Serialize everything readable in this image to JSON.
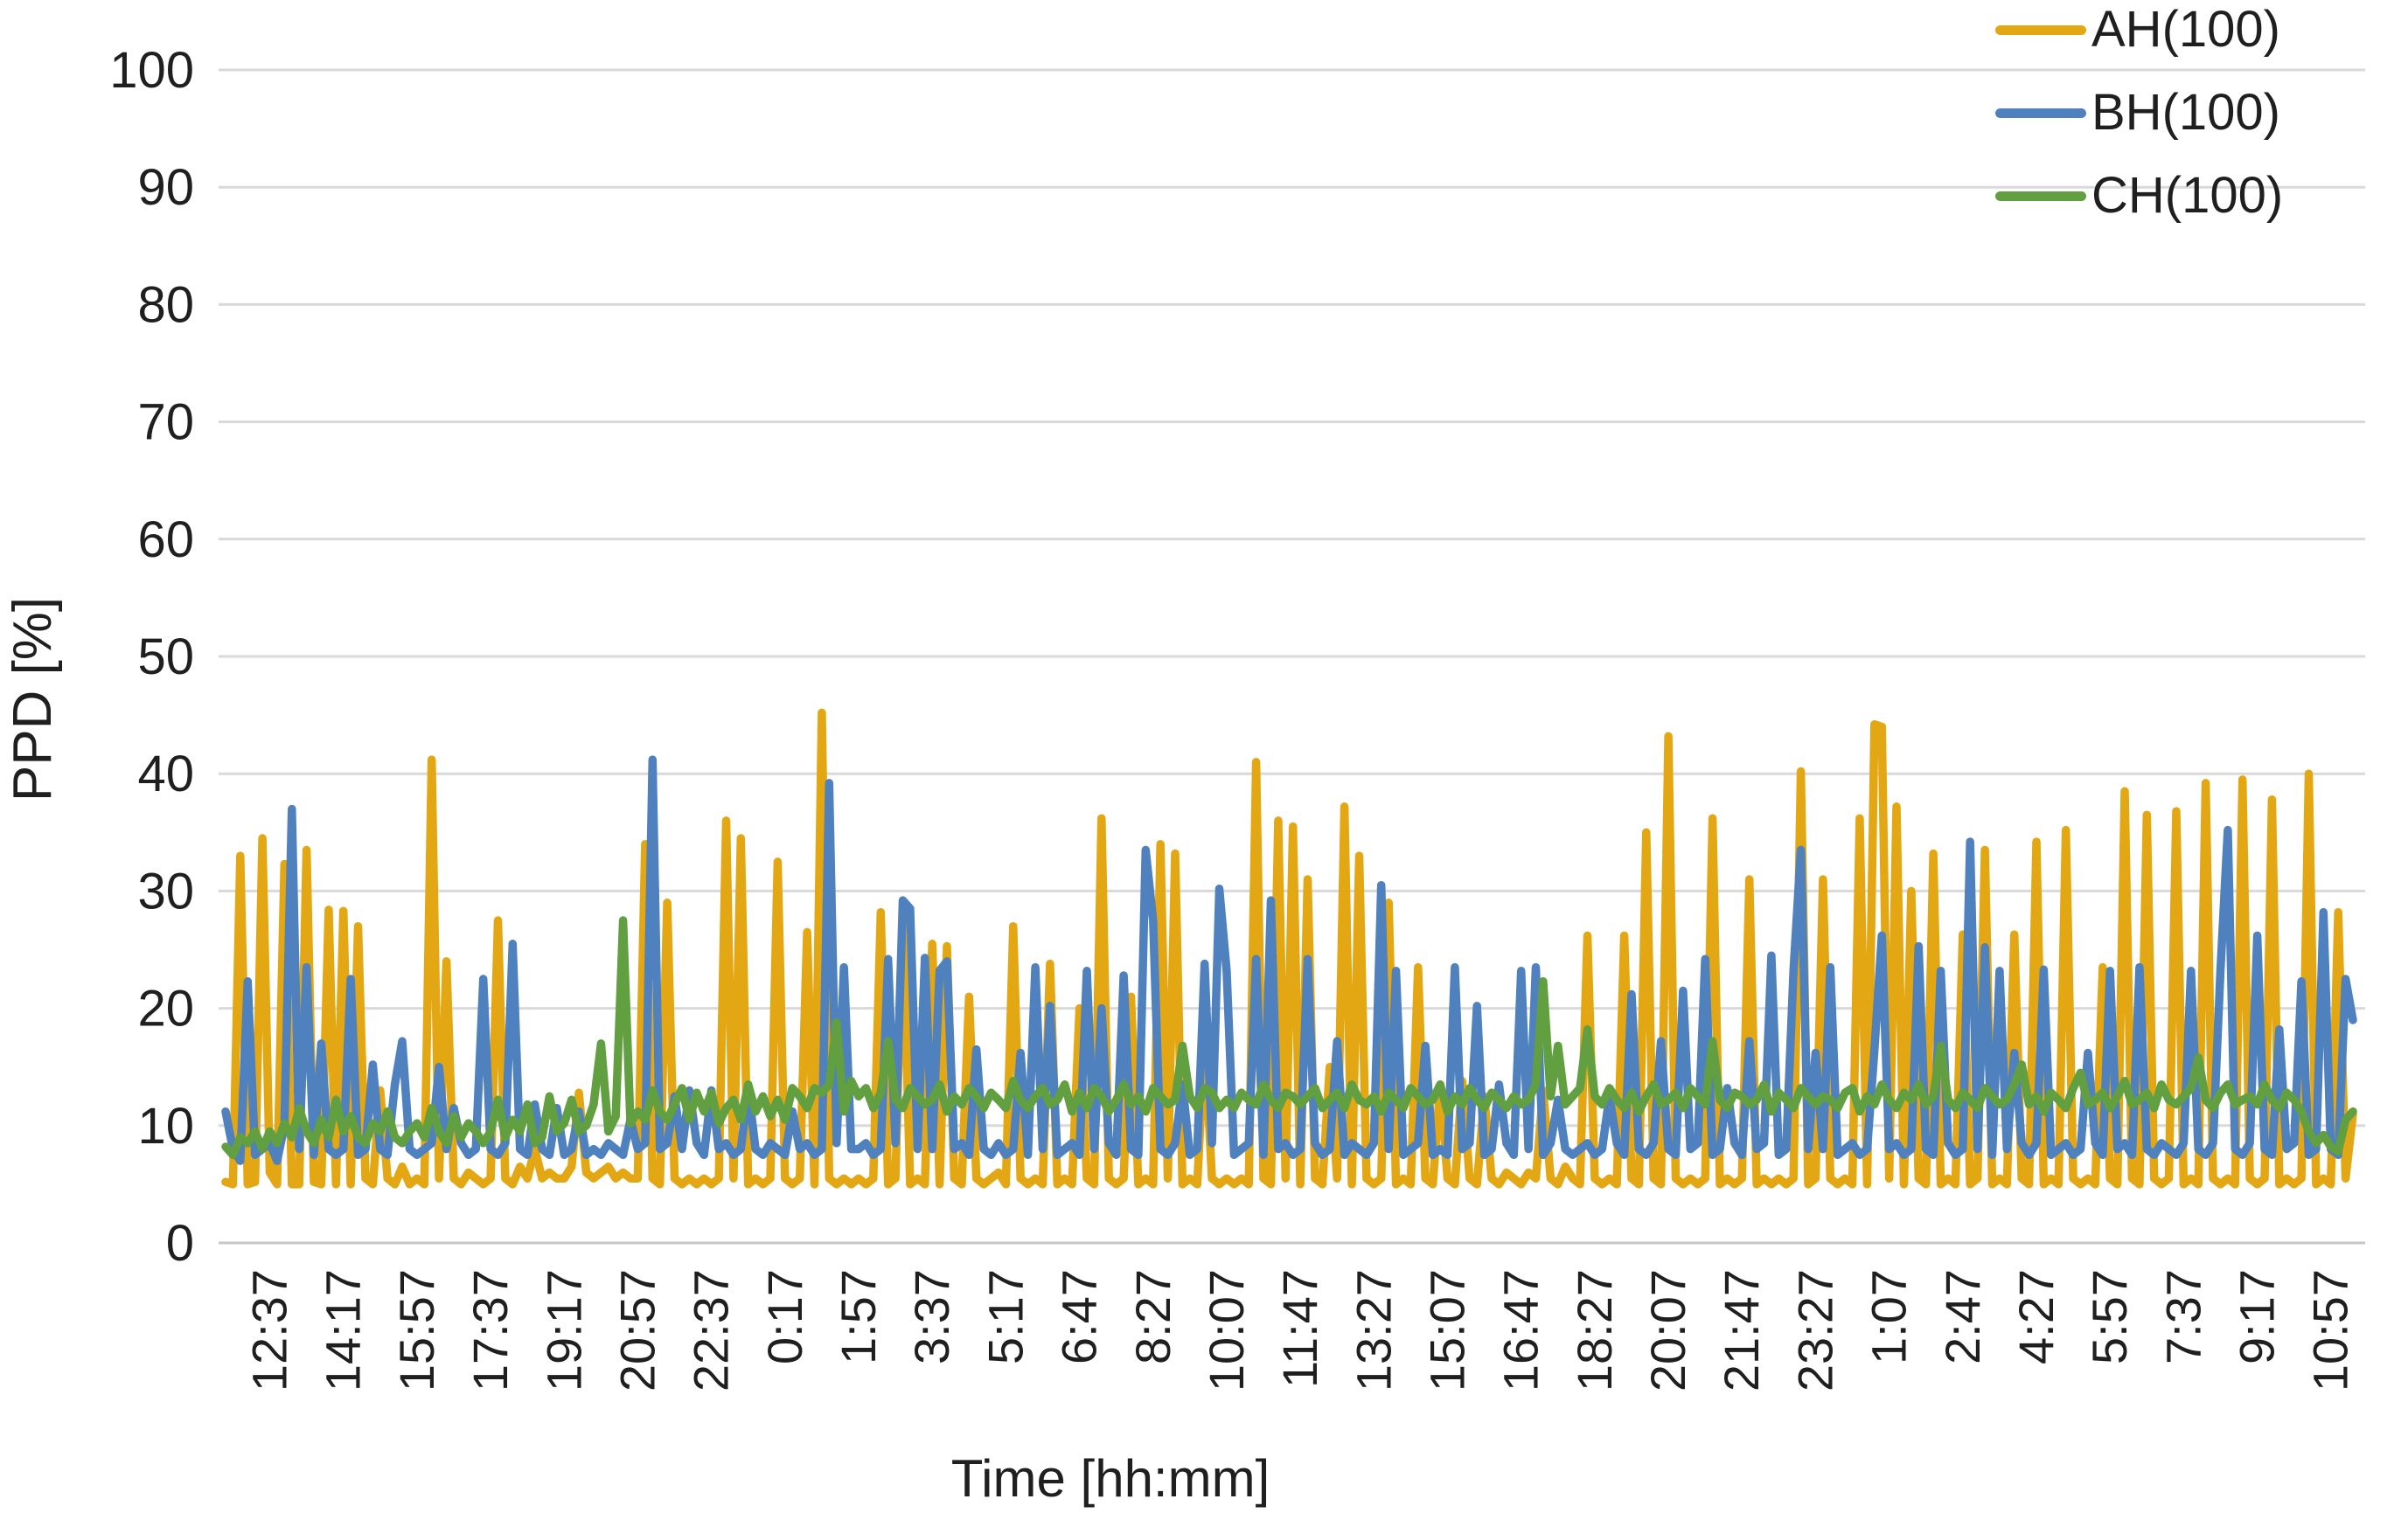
{
  "chart_data": {
    "type": "line",
    "title": "",
    "xlabel": "Time [hh:mm]",
    "ylabel": "PPD [%]",
    "ylim": [
      0,
      100
    ],
    "yticks": [
      0,
      10,
      20,
      30,
      40,
      50,
      60,
      70,
      80,
      90,
      100
    ],
    "grid": true,
    "legend_position": "top-right",
    "grid_color": "#d9d9d9",
    "axis_line_color": "#c6c6c6",
    "text_color": "#1f1f1f",
    "x_tick_labels": [
      "12:37",
      "14:17",
      "15:57",
      "17:37",
      "19:17",
      "20:57",
      "22:37",
      "0:17",
      "1:57",
      "3:37",
      "5:17",
      "6:47",
      "8:27",
      "10:07",
      "11:47",
      "13:27",
      "15:07",
      "16:47",
      "18:27",
      "20:07",
      "21:47",
      "23:27",
      "1:07",
      "2:47",
      "4:27",
      "5:57",
      "7:37",
      "9:17",
      "10:57"
    ],
    "first_tick_index": 6,
    "points_per_tick": 10,
    "series": [
      {
        "name": "AH(100)",
        "color": "#e2a712",
        "values": [
          5.2,
          5,
          33,
          5,
          5.2,
          34.5,
          6,
          5,
          32.3,
          5,
          5,
          33.5,
          5.2,
          5,
          28.4,
          5,
          28.3,
          5,
          27,
          5.5,
          5,
          13,
          5.5,
          5,
          6.5,
          5,
          5.5,
          5,
          41.2,
          5.5,
          24,
          5.5,
          5,
          6,
          5.5,
          5,
          5.5,
          27.5,
          5.5,
          5,
          6.5,
          5.5,
          8,
          5.5,
          6,
          5.5,
          5.5,
          6.5,
          12.8,
          6,
          5.5,
          6,
          6.5,
          5.5,
          6,
          5.5,
          5.5,
          34,
          5.5,
          5,
          29,
          5.5,
          5,
          5.5,
          5,
          5.5,
          5,
          5.5,
          36,
          5.5,
          34.5,
          5,
          5.5,
          5,
          5.5,
          32.5,
          5.5,
          5,
          5.5,
          26.5,
          5,
          45.2,
          5.5,
          5,
          5.5,
          5,
          5.5,
          5,
          5.5,
          28.2,
          5,
          5.5,
          28.4,
          5,
          5.5,
          5,
          25.5,
          5,
          25.3,
          5.5,
          5,
          21,
          5.5,
          5,
          5.5,
          6,
          5,
          27,
          5.5,
          5,
          5.5,
          5,
          23.8,
          5,
          5.5,
          5,
          20,
          5.5,
          5,
          36.2,
          5.5,
          5,
          5.5,
          21,
          5,
          5.5,
          5,
          34,
          5.5,
          33.2,
          5,
          5.5,
          5,
          17.5,
          5.5,
          5,
          5.5,
          5,
          5.5,
          5,
          41,
          5.5,
          5,
          36,
          5.5,
          35.5,
          5,
          31,
          5.5,
          5,
          15,
          5.5,
          37.2,
          5,
          33,
          5.5,
          5,
          5.5,
          29,
          5,
          5.5,
          5,
          23.5,
          5.5,
          5,
          13.5,
          5.5,
          5,
          13.8,
          5.5,
          5,
          12.5,
          5.5,
          5,
          6,
          5.5,
          5,
          6,
          5.5,
          13,
          5.5,
          5,
          6.5,
          5.5,
          5,
          26.2,
          5.5,
          5,
          5.5,
          5,
          26.2,
          5.5,
          5,
          35,
          5.5,
          5,
          43.2,
          5.5,
          5,
          5.5,
          5,
          5.5,
          36.2,
          5,
          5.5,
          5,
          5.5,
          31,
          5,
          5.5,
          5,
          5.5,
          5,
          5.5,
          40.2,
          5,
          5.5,
          31,
          5.5,
          5,
          5.5,
          5,
          36.2,
          5,
          44.2,
          44,
          5.5,
          37.2,
          5,
          30,
          5.5,
          5,
          33.2,
          5,
          5.5,
          5,
          26.3,
          5,
          5.5,
          33.5,
          5,
          5.5,
          5,
          26.3,
          5.5,
          5,
          34.2,
          5,
          5.5,
          5,
          35.2,
          5.5,
          5,
          5.5,
          5,
          23.5,
          5.5,
          5,
          38.5,
          5.5,
          5,
          36.5,
          5.5,
          5,
          5.5,
          36.8,
          5,
          5.5,
          5,
          39.2,
          5.5,
          5,
          5.5,
          5,
          39.5,
          5.5,
          5,
          5.5,
          37.8,
          5,
          5.5,
          5,
          5.5,
          40,
          5,
          5.5,
          5,
          28.2,
          5.5,
          11
        ]
      },
      {
        "name": "BH(100)",
        "color": "#4e81bd",
        "values": [
          11.2,
          8,
          7,
          22.3,
          7.5,
          8,
          8.5,
          7,
          10,
          37,
          8,
          23.5,
          7.5,
          17,
          8,
          7.5,
          8,
          22.5,
          7.5,
          8,
          15.2,
          8,
          7.5,
          13.5,
          17.2,
          8,
          7.5,
          8,
          8.5,
          15,
          8,
          11.5,
          8.5,
          7.5,
          8,
          22.5,
          8,
          7.5,
          8.5,
          25.5,
          8,
          7.5,
          11.8,
          8,
          7.5,
          11.5,
          7.5,
          8,
          11.2,
          7.5,
          8,
          7.5,
          8.5,
          8,
          7.5,
          10.5,
          8,
          8.5,
          41.2,
          8,
          8.5,
          12.5,
          8,
          13,
          8.5,
          7.5,
          13,
          8,
          8.5,
          7.5,
          8,
          13.2,
          8,
          7.5,
          8.5,
          8,
          7.5,
          11.2,
          8,
          8.5,
          7.5,
          8,
          39.2,
          8.5,
          23.5,
          8,
          8,
          8.5,
          7.5,
          8,
          24.2,
          8.5,
          29.2,
          28.5,
          8,
          24.3,
          8,
          23.2,
          24,
          8,
          8.5,
          7.5,
          16.5,
          8,
          7.5,
          8.5,
          7.5,
          8,
          16.2,
          7.5,
          23.5,
          8,
          20.2,
          7.5,
          8,
          8.5,
          7.5,
          23.2,
          8,
          20,
          8.5,
          7.5,
          22.8,
          8,
          7.5,
          33.5,
          27.5,
          8,
          7.5,
          8.5,
          13.5,
          7.5,
          8,
          23.8,
          8.5,
          30.2,
          23.2,
          7.5,
          8,
          8.5,
          24.2,
          7.5,
          29.2,
          8,
          8.5,
          7.5,
          8,
          24.2,
          8.5,
          7.5,
          8,
          17.2,
          7.5,
          8.5,
          8,
          7.5,
          8.5,
          30.5,
          8,
          23.2,
          7.5,
          8,
          8.5,
          16.8,
          7.5,
          8,
          7.5,
          23.5,
          8,
          8.5,
          20.2,
          7.5,
          8,
          13.5,
          8.5,
          7.5,
          23.2,
          8,
          23.5,
          7.5,
          8.5,
          12.2,
          8,
          7.5,
          8,
          8.5,
          7.5,
          8,
          12.5,
          8.5,
          7.5,
          21.2,
          8,
          7.5,
          8.5,
          17.2,
          8,
          7.5,
          21.5,
          8,
          8.5,
          24.2,
          7.5,
          8,
          13.2,
          8.5,
          7.5,
          17.2,
          8,
          8.5,
          24.5,
          7.5,
          8,
          23.2,
          33.5,
          8,
          16.2,
          8,
          23.5,
          7.5,
          8,
          8.5,
          7.5,
          8,
          16.5,
          26.2,
          8,
          8.5,
          7.5,
          8,
          25.3,
          8,
          7.5,
          23.2,
          8.5,
          7.5,
          8,
          34.2,
          8,
          25.2,
          7.5,
          23.2,
          8,
          16.2,
          8.5,
          7.5,
          8.5,
          23.3,
          7.5,
          8,
          8.5,
          7.5,
          8,
          16.2,
          8.5,
          7.5,
          23.2,
          8,
          8.5,
          7.5,
          23.5,
          8,
          7.5,
          8.5,
          8,
          7.5,
          8.5,
          23.2,
          8,
          7.5,
          8.5,
          23.2,
          35.2,
          8,
          7.5,
          8.5,
          26.2,
          8,
          7.5,
          18.2,
          8,
          8.5,
          22.3,
          7.5,
          8,
          28.2,
          8,
          7.5,
          22.5,
          19
        ]
      },
      {
        "name": "CH(100)",
        "color": "#619f40",
        "values": [
          8.2,
          7.5,
          9,
          8.5,
          9.5,
          8,
          9.5,
          8.5,
          10.2,
          9,
          11.5,
          9.5,
          8.5,
          10.5,
          9,
          12.2,
          9.5,
          10.8,
          9,
          8.5,
          10.2,
          9.5,
          11.2,
          9,
          8.5,
          9.5,
          10.2,
          9,
          11.5,
          9.5,
          8.5,
          10.8,
          9,
          10.2,
          9.5,
          8.5,
          9.5,
          12.2,
          9,
          10.5,
          9.5,
          11.8,
          8.5,
          9,
          12.5,
          9.5,
          10.2,
          12.2,
          9.5,
          10,
          11.8,
          17,
          9.5,
          10.8,
          27.5,
          10.2,
          11.2,
          10.5,
          13,
          11.2,
          10.5,
          11.8,
          13.2,
          10.5,
          12.8,
          11.2,
          12.8,
          10.2,
          11.5,
          12.2,
          10.5,
          13.5,
          11.2,
          12.5,
          10.8,
          12.2,
          10.5,
          13.2,
          12.5,
          11.5,
          13.2,
          12.8,
          13.5,
          18.8,
          11.2,
          13.8,
          12.5,
          13.2,
          11.5,
          12.8,
          17.2,
          12.2,
          11.5,
          13.2,
          12.5,
          11.8,
          12.2,
          13.5,
          11.2,
          12.5,
          11.8,
          13.2,
          12.5,
          11.5,
          12.8,
          12.2,
          11.5,
          13.8,
          12.2,
          11.5,
          12.5,
          13.2,
          11.8,
          12.2,
          13.5,
          11.2,
          12.8,
          11.5,
          13.2,
          12.5,
          11.2,
          12.2,
          13.5,
          11.8,
          12.5,
          11.2,
          13.2,
          12.5,
          11.8,
          12.2,
          16.8,
          12.5,
          11.5,
          13.2,
          12.8,
          11.5,
          12.2,
          11.5,
          12.8,
          12.2,
          11.8,
          13.5,
          12.2,
          11.5,
          12.8,
          12.5,
          11.8,
          12.5,
          13.2,
          11.5,
          12.2,
          12.8,
          11.5,
          13.5,
          12.2,
          11.8,
          12.5,
          11.2,
          12.8,
          12.2,
          11.5,
          13.2,
          12.5,
          11.8,
          12.2,
          13.5,
          11.2,
          12.5,
          11.8,
          13.2,
          12.2,
          11.5,
          12.8,
          12.2,
          11.5,
          12.5,
          11.8,
          12.2,
          13.5,
          22.3,
          12.5,
          16.8,
          11.8,
          12.5,
          13.2,
          18.2,
          12.5,
          11.8,
          13.2,
          12.2,
          11.5,
          12.8,
          11.2,
          12.5,
          13.5,
          11.8,
          12.2,
          12.8,
          11.5,
          13.2,
          12.5,
          11.8,
          17.2,
          12.2,
          11.5,
          12.8,
          12.5,
          11.8,
          12.2,
          13.5,
          11.2,
          12.8,
          12.2,
          11.5,
          13.2,
          12.5,
          11.8,
          12.5,
          12.2,
          11.5,
          12.8,
          13.2,
          11.2,
          12.5,
          11.8,
          13.5,
          12.2,
          11.5,
          12.8,
          12.2,
          13.5,
          11.8,
          12.5,
          16.8,
          12.2,
          11.5,
          12.8,
          12.2,
          11.5,
          13.2,
          12.5,
          11.8,
          12.2,
          13.5,
          15.2,
          11.8,
          12.5,
          11.2,
          12.8,
          12.2,
          11.5,
          13.2,
          14.5,
          11.8,
          12.2,
          12.8,
          11.5,
          12.5,
          13.8,
          11.8,
          12.2,
          12.8,
          11.5,
          13.5,
          12.2,
          11.8,
          12.5,
          13.2,
          15.8,
          12.2,
          11.5,
          12.8,
          13.5,
          11.8,
          12.2,
          12.5,
          11.8,
          13.5,
          12.2,
          11.5,
          12.8,
          12.2,
          11.2,
          9.5,
          8.5,
          9.2,
          8.2,
          7.8,
          10.5,
          11.2
        ]
      }
    ]
  }
}
